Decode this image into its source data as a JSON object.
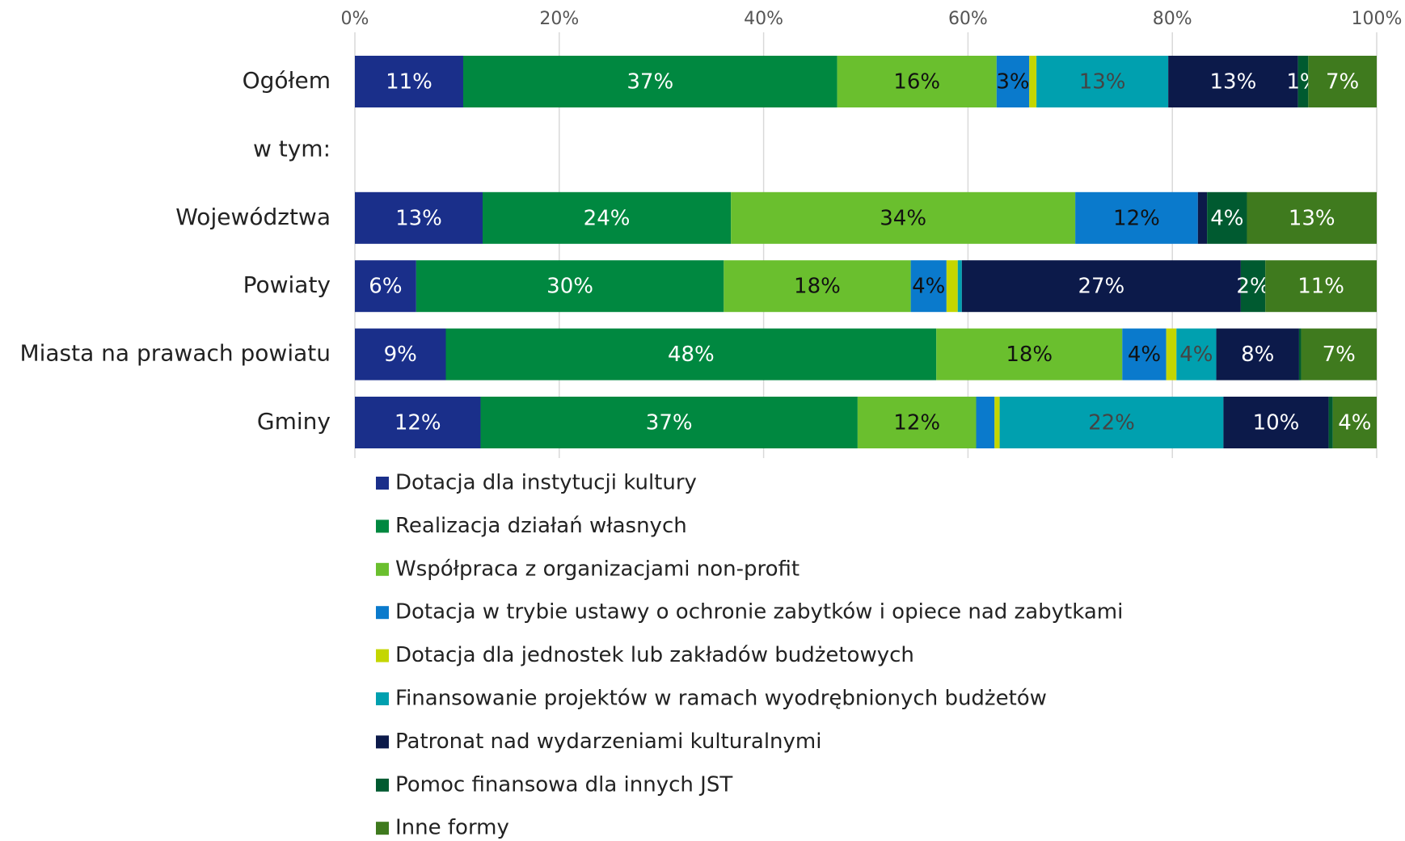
{
  "chart_data": {
    "type": "stacked_bar_horizontal",
    "categories": [
      "Ogółem",
      "w tym:",
      "Województwa",
      "Powiaty",
      "Miasta na prawach powiatu",
      "Gminy"
    ],
    "xlim": [
      0,
      100
    ],
    "xticks": [
      {
        "value": 0,
        "label": "0%"
      },
      {
        "value": 20,
        "label": "20%"
      },
      {
        "value": 40,
        "label": "40%"
      },
      {
        "value": 60,
        "label": "60%"
      },
      {
        "value": 80,
        "label": "80%"
      },
      {
        "value": 100,
        "label": "100%"
      }
    ],
    "grid": true,
    "legend": "bottom",
    "series": [
      {
        "name": "Dotacja dla instytucji kultury",
        "color": "#1a2f8a",
        "label_color": "#ffffff",
        "values": [
          10.6,
          null,
          12.5,
          6.0,
          8.9,
          12.3
        ],
        "value_labels": [
          "11%",
          null,
          "13%",
          "6%",
          "9%",
          "12%"
        ]
      },
      {
        "name": "Realizacja działań własnych",
        "color": "#008840",
        "label_color": "#ffffff",
        "values": [
          36.6,
          null,
          24.3,
          30.1,
          48.0,
          36.9
        ],
        "value_labels": [
          "37%",
          null,
          "24%",
          "30%",
          "48%",
          "37%"
        ]
      },
      {
        "name": "Współpraca z organizacjami non-profit",
        "color": "#6abf2e",
        "label_color": "#111111",
        "values": [
          15.6,
          null,
          33.7,
          18.3,
          18.2,
          11.6
        ],
        "value_labels": [
          "16%",
          null,
          "34%",
          "18%",
          "18%",
          "12%"
        ]
      },
      {
        "name": "Dotacja w trybie ustawy o ochronie zabytków i opiece nad zabytkami",
        "color": "#0a7acc",
        "label_color": "#111111",
        "values": [
          3.2,
          null,
          12.0,
          3.5,
          4.3,
          1.8
        ],
        "value_labels": [
          "3%",
          null,
          "12%",
          "4%",
          "4%",
          null
        ]
      },
      {
        "name": "Dotacja dla jednostek lub zakładów budżetowych",
        "color": "#c4d600",
        "label_color": "#111111",
        "values": [
          0.7,
          null,
          0,
          1.1,
          1.0,
          0.5
        ],
        "value_labels": [
          null,
          null,
          null,
          null,
          null,
          null
        ]
      },
      {
        "name": "Finansowanie projektów w ramach wyodrębnionych budżetów",
        "color": "#00a0af",
        "label_color": "#444444",
        "values": [
          12.9,
          null,
          0,
          0.4,
          3.9,
          21.9
        ],
        "value_labels": [
          "13%",
          null,
          null,
          null,
          "4%",
          "22%"
        ]
      },
      {
        "name": "Patronat nad wydarzeniami kulturalnymi",
        "color": "#0c1a4a",
        "label_color": "#ffffff",
        "values": [
          12.7,
          null,
          0.9,
          27.3,
          8.1,
          10.3
        ],
        "value_labels": [
          "13%",
          null,
          null,
          "27%",
          "8%",
          "10%"
        ]
      },
      {
        "name": "Pomoc finansowa dla innych JST",
        "color": "#005a30",
        "label_color": "#ffffff",
        "values": [
          1.0,
          null,
          3.9,
          2.4,
          0.2,
          0.4
        ],
        "value_labels": [
          "1%",
          null,
          "4%",
          "2%",
          null,
          null
        ]
      },
      {
        "name": "Inne formy",
        "color": "#3f7a1e",
        "label_color": "#ffffff",
        "values": [
          6.7,
          null,
          12.7,
          10.9,
          7.4,
          4.3
        ],
        "value_labels": [
          "7%",
          null,
          "13%",
          "11%",
          "7%",
          "4%"
        ]
      }
    ]
  }
}
